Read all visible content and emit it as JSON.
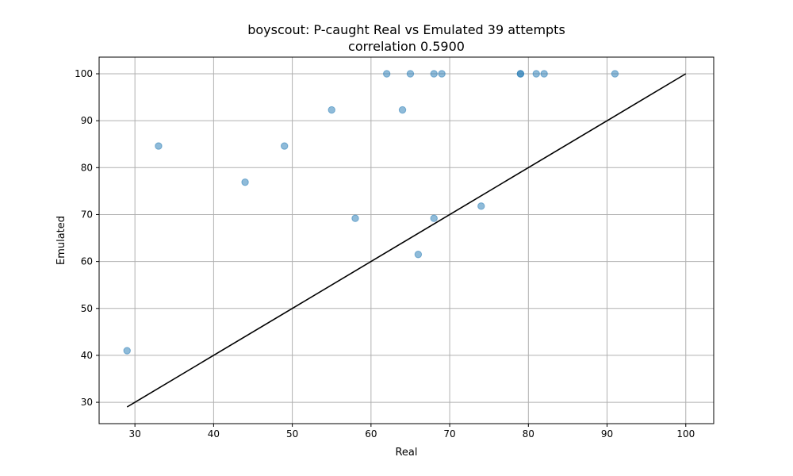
{
  "chart_data": {
    "type": "scatter",
    "title": "boyscout: P-caught Real vs Emulated 39 attempts",
    "subtitle": "correlation 0.5900",
    "xlabel": "Real",
    "ylabel": "Emulated",
    "xlim": [
      25.45,
      103.55
    ],
    "ylim": [
      25.45,
      103.55
    ],
    "xticks": [
      30,
      40,
      50,
      60,
      70,
      80,
      90,
      100
    ],
    "yticks": [
      30,
      40,
      50,
      60,
      70,
      80,
      90,
      100
    ],
    "grid": true,
    "point_color": "#1f77b4",
    "line_color": "#000000",
    "points": [
      {
        "x": 29,
        "y": 41
      },
      {
        "x": 33,
        "y": 84.6
      },
      {
        "x": 44,
        "y": 76.9
      },
      {
        "x": 49,
        "y": 84.6
      },
      {
        "x": 55,
        "y": 92.3
      },
      {
        "x": 58,
        "y": 69.2
      },
      {
        "x": 62,
        "y": 100
      },
      {
        "x": 64,
        "y": 92.3
      },
      {
        "x": 65,
        "y": 100
      },
      {
        "x": 66,
        "y": 61.5
      },
      {
        "x": 68,
        "y": 100
      },
      {
        "x": 68,
        "y": 69.2
      },
      {
        "x": 69,
        "y": 100
      },
      {
        "x": 74,
        "y": 71.8
      },
      {
        "x": 79,
        "y": 100
      },
      {
        "x": 79,
        "y": 100
      },
      {
        "x": 81,
        "y": 100
      },
      {
        "x": 82,
        "y": 100
      },
      {
        "x": 91,
        "y": 100
      }
    ],
    "reference_line": {
      "x": [
        29,
        100
      ],
      "y": [
        29,
        100
      ]
    }
  }
}
